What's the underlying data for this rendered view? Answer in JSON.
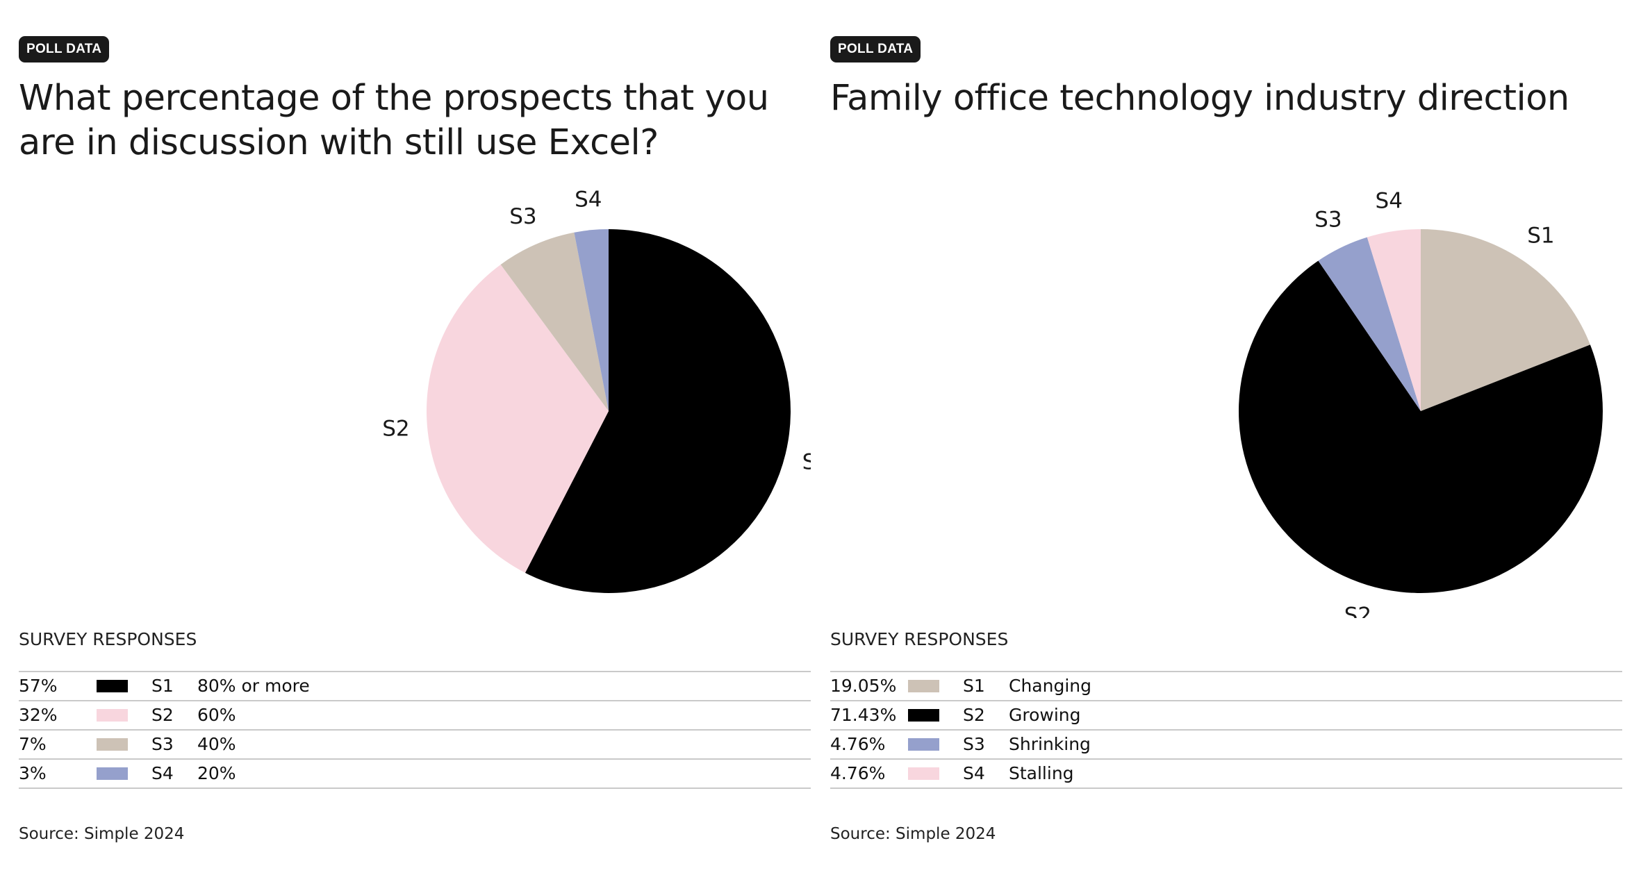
{
  "chart_data": [
    {
      "type": "pie",
      "badge": "POLL DATA",
      "title": "What percentage of the prospects that you are in discussion with still use Excel?",
      "legend_title": "SURVEY RESPONSES",
      "source": "Source: Simple 2024",
      "series": [
        {
          "key": "S1",
          "label": "80% or more",
          "value": 57,
          "percent": "57%",
          "color": "#000000"
        },
        {
          "key": "S2",
          "label": "60%",
          "value": 32,
          "percent": "32%",
          "color": "#f8d6de"
        },
        {
          "key": "S3",
          "label": "40%",
          "value": 7,
          "percent": "7%",
          "color": "#cdc2b6"
        },
        {
          "key": "S4",
          "label": "20%",
          "value": 3,
          "percent": "3%",
          "color": "#95a0cc"
        }
      ]
    },
    {
      "type": "pie",
      "badge": "POLL DATA",
      "title": "Family office technology industry direction",
      "legend_title": "SURVEY RESPONSES",
      "source": "Source: Simple 2024",
      "series": [
        {
          "key": "S1",
          "label": "Changing",
          "value": 19.05,
          "percent": "19.05%",
          "color": "#cdc2b6"
        },
        {
          "key": "S2",
          "label": "Growing",
          "value": 71.43,
          "percent": "71.43%",
          "color": "#000000"
        },
        {
          "key": "S3",
          "label": "Shrinking",
          "value": 4.76,
          "percent": "4.76%",
          "color": "#95a0cc"
        },
        {
          "key": "S4",
          "label": "Stalling",
          "value": 4.76,
          "percent": "4.76%",
          "color": "#f8d6de"
        }
      ]
    }
  ]
}
